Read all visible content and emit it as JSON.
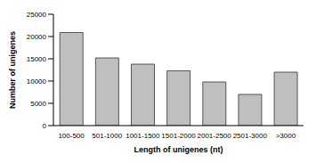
{
  "chart_data": {
    "type": "bar",
    "categories": [
      "100-500",
      "501-1000",
      "1001-1500",
      "1501-2000",
      "2001-2500",
      "2501-3000",
      ">3000"
    ],
    "values": [
      20900,
      15200,
      13800,
      12300,
      9800,
      7000,
      12000
    ],
    "color": "#bfbfbf",
    "x_label": "Length of unigenes (nt)",
    "y_label": "Number of unigenes",
    "ylim": [
      0,
      25000
    ],
    "yticks": [
      0,
      5000,
      10000,
      15000,
      20000,
      25000
    ],
    "grid": false
  }
}
